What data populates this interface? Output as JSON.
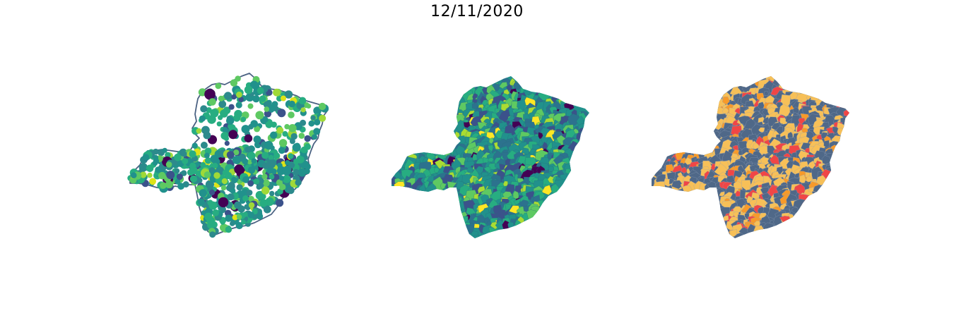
{
  "figure": {
    "title": "12/11/2020"
  },
  "maps": [
    {
      "id": "points-map",
      "kind": "proportional-symbol points over state outline",
      "outline_color": "#4a6182",
      "point_colormap": [
        "#440154",
        "#3b528b",
        "#2c8a8c",
        "#21918c",
        "#27ad81",
        "#5ec962",
        "#9fd938",
        "#dde318"
      ]
    },
    {
      "id": "choropleth-viridis",
      "kind": "municipality choropleth",
      "colormap": [
        "#440154",
        "#3b528b",
        "#2c728e",
        "#21918c",
        "#27ad81",
        "#5ec962",
        "#aadc32",
        "#fde725"
      ]
    },
    {
      "id": "choropleth-categories",
      "kind": "municipality categorical choropleth",
      "colors": {
        "base": "#4f6888",
        "light": "#f7c058",
        "medium": "#f79a2a",
        "high": "#f04646"
      }
    }
  ]
}
